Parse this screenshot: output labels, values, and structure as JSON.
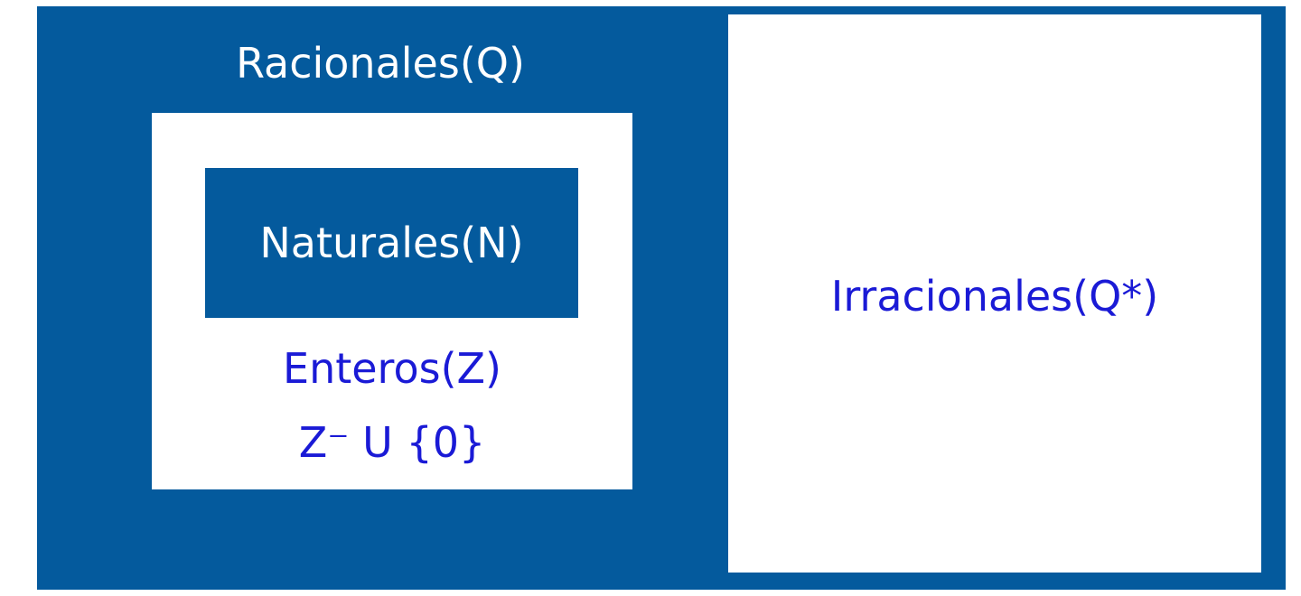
{
  "diagram": {
    "rationals": {
      "label": "Racionales(Q)"
    },
    "naturals": {
      "label": "Naturales(N)"
    },
    "integers": {
      "label": "Enteros(Z)",
      "sublabel": "Z⁻ U {0}"
    },
    "irrationals": {
      "label": "Irracionales(Q*)"
    }
  },
  "colors": {
    "dark_blue": "#045a9d",
    "text_blue": "#1a1ad6",
    "white": "#ffffff"
  }
}
